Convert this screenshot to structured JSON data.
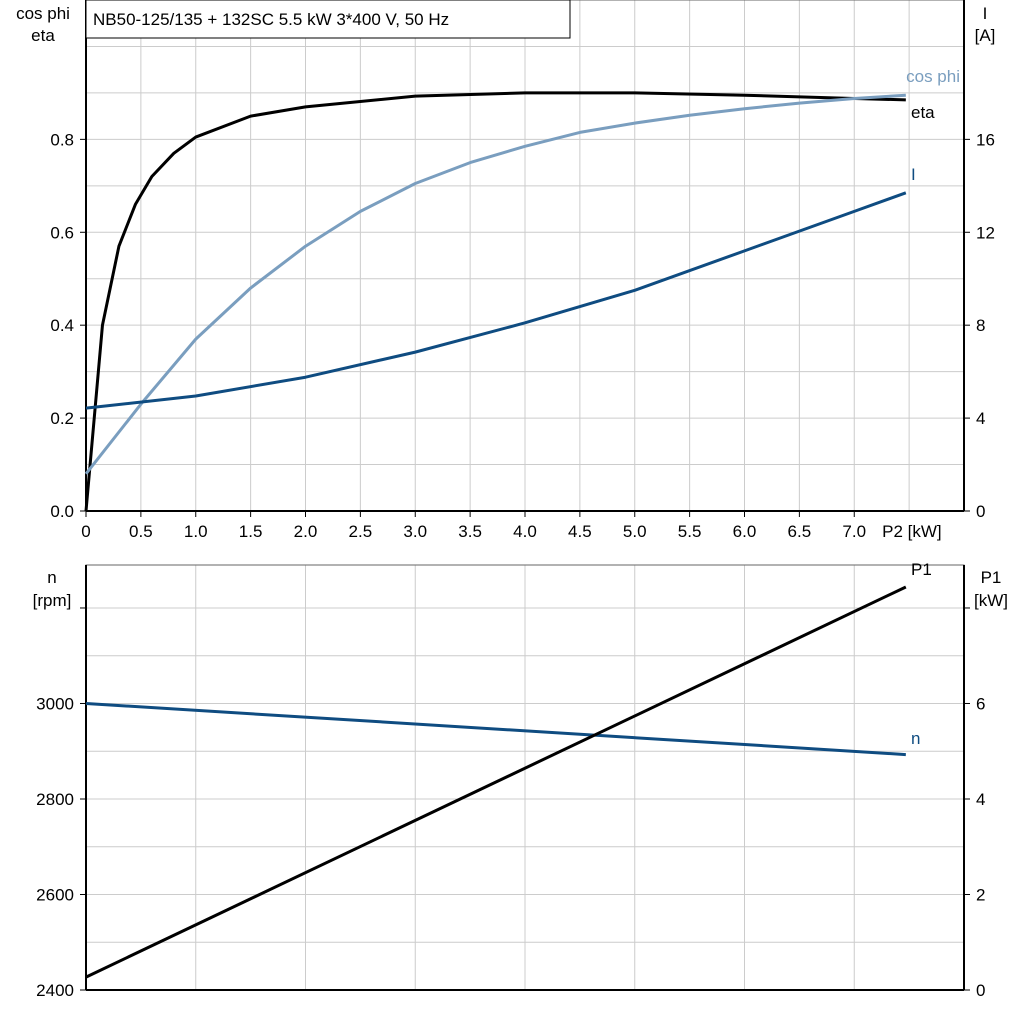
{
  "chart_data": [
    {
      "type": "line",
      "title": "NB50-125/135 + 132SC   5.5 kW   3*400 V, 50 Hz",
      "xlabel": "P2 [kW]",
      "ylabel_left": [
        "cos phi",
        "eta"
      ],
      "ylabel_right": [
        "I",
        "[A]"
      ],
      "xlim": [
        0,
        8
      ],
      "ylim_left": [
        0,
        1.1
      ],
      "ylim_right": [
        0,
        22
      ],
      "x_ticks": [
        "0",
        "0.5",
        "1.0",
        "1.5",
        "2.0",
        "2.5",
        "3.0",
        "3.5",
        "4.0",
        "4.5",
        "5.0",
        "5.5",
        "6.0",
        "6.5",
        "7.0"
      ],
      "y_ticks_left": [
        "0.0",
        "0.2",
        "0.4",
        "0.6",
        "0.8"
      ],
      "y_ticks_right": [
        "0",
        "4",
        "8",
        "12",
        "16"
      ],
      "grid": true,
      "series": [
        {
          "name": "eta",
          "axis": "left",
          "color": "#000000",
          "x": [
            0,
            0.15,
            0.3,
            0.45,
            0.6,
            0.8,
            1.0,
            1.5,
            2.0,
            3.0,
            4.0,
            5.0,
            6.0,
            7.0,
            7.47
          ],
          "y": [
            0,
            0.4,
            0.57,
            0.66,
            0.72,
            0.77,
            0.805,
            0.85,
            0.87,
            0.893,
            0.9,
            0.9,
            0.895,
            0.888,
            0.885
          ]
        },
        {
          "name": "cos phi",
          "axis": "left",
          "color": "#7a9ebf",
          "x": [
            0,
            0.5,
            1.0,
            1.5,
            2.0,
            2.5,
            3.0,
            3.5,
            4.0,
            4.5,
            5.0,
            5.5,
            6.0,
            6.5,
            7.0,
            7.47
          ],
          "y": [
            0.08,
            0.23,
            0.37,
            0.48,
            0.57,
            0.645,
            0.705,
            0.75,
            0.785,
            0.815,
            0.835,
            0.852,
            0.866,
            0.878,
            0.888,
            0.895
          ]
        },
        {
          "name": "I",
          "axis": "right",
          "color": "#0f4c81",
          "x": [
            0,
            1,
            2,
            3,
            4,
            5,
            6,
            7,
            7.47
          ],
          "y": [
            4.43,
            4.95,
            5.76,
            6.84,
            8.1,
            9.5,
            11.2,
            12.9,
            13.7
          ]
        }
      ]
    },
    {
      "type": "line",
      "xlim": [
        0,
        8
      ],
      "ylim_left": [
        2400,
        3290
      ],
      "ylim_right": [
        0,
        8.9
      ],
      "ylabel_left": [
        "n",
        "[rpm]"
      ],
      "ylabel_right": [
        "P1",
        "[kW]"
      ],
      "y_ticks_left": [
        "2400",
        "2600",
        "2800",
        "3000"
      ],
      "y_ticks_right": [
        "0",
        "2",
        "4",
        "6"
      ],
      "grid": true,
      "series": [
        {
          "name": "n",
          "axis": "left",
          "color": "#0f4c81",
          "x": [
            0,
            7.47
          ],
          "y": [
            3000,
            2893
          ]
        },
        {
          "name": "P1",
          "axis": "right",
          "color": "#000000",
          "x": [
            0,
            7.47
          ],
          "y": [
            0.27,
            8.44
          ]
        }
      ]
    }
  ]
}
